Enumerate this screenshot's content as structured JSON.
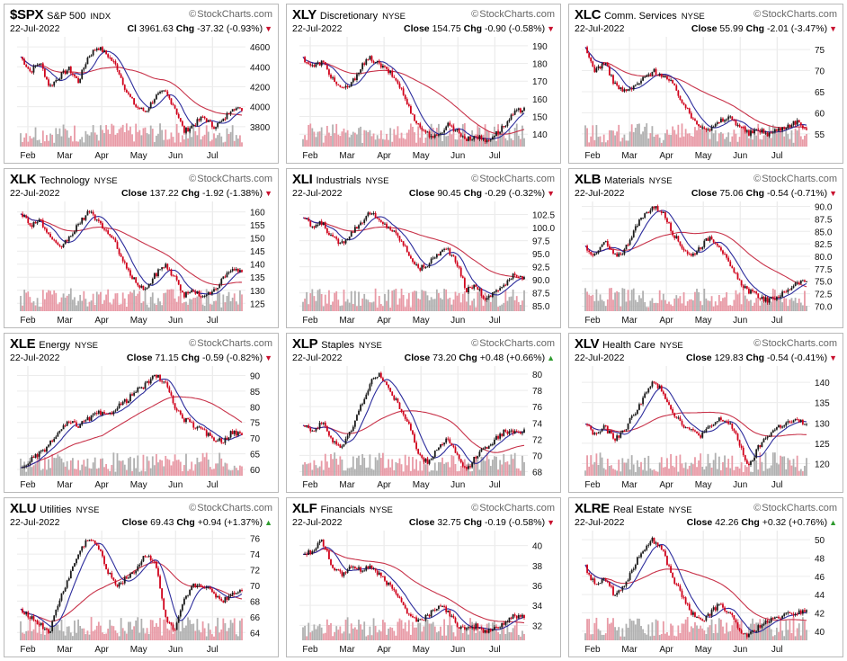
{
  "source": "StockCharts.com",
  "date": "22-Jul-2022",
  "colors": {
    "up": "#1a1a1a",
    "down": "#d0021b",
    "ma_short": "#2c2c9c",
    "ma_long": "#c8334a",
    "vol_up": "#b0b0b0",
    "vol_down": "#e89aa6",
    "trend_down": "#d0021b",
    "trend_up": "#2e9b2e"
  },
  "chart_data": [
    {
      "type": "line",
      "symbol": "$SPX",
      "name": "S&P 500",
      "exchange": "INDX",
      "close_label": "Cl",
      "close": "3961.63",
      "change": "-37.32 (-0.93%)",
      "trend": "down",
      "x": [
        "Feb",
        "Mar",
        "Apr",
        "May",
        "Jun",
        "Jul"
      ],
      "ylim": [
        3600,
        4700
      ],
      "yticks": [
        "4600",
        "4400",
        "4200",
        "4000",
        "3800"
      ],
      "price": [
        4500,
        4350,
        4450,
        4200,
        4300,
        4380,
        4250,
        4500,
        4600,
        4520,
        4400,
        4150,
        4000,
        3950,
        4100,
        4150,
        4000,
        3750,
        3820,
        3900,
        3800,
        3850,
        4000,
        3960
      ]
    },
    {
      "type": "line",
      "symbol": "XLY",
      "name": "Discretionary",
      "exchange": "NYSE",
      "close_label": "Close",
      "close": "154.75",
      "change": "-0.90 (-0.58%)",
      "trend": "down",
      "x": [
        "Feb",
        "Mar",
        "Apr",
        "May",
        "Jun",
        "Jul"
      ],
      "ylim": [
        133,
        195
      ],
      "yticks": [
        "190",
        "180",
        "170",
        "160",
        "150",
        "140"
      ],
      "price": [
        183,
        178,
        181,
        172,
        165,
        168,
        178,
        183,
        179,
        175,
        168,
        155,
        145,
        140,
        138,
        146,
        142,
        137,
        139,
        136,
        140,
        145,
        152,
        155
      ]
    },
    {
      "type": "line",
      "symbol": "XLC",
      "name": "Comm. Services",
      "exchange": "NYSE",
      "close_label": "Close",
      "close": "55.99",
      "change": "-2.01 (-3.47%)",
      "trend": "down",
      "x": [
        "Feb",
        "Mar",
        "Apr",
        "May",
        "Jun",
        "Jul"
      ],
      "ylim": [
        52,
        78
      ],
      "yticks": [
        "75",
        "70",
        "65",
        "60",
        "55"
      ],
      "price": [
        75,
        70,
        72,
        67,
        65,
        66,
        68,
        70,
        69,
        67,
        63,
        59,
        57,
        56,
        58,
        59,
        57,
        55,
        56,
        55,
        56,
        57,
        58,
        56
      ]
    },
    {
      "type": "line",
      "symbol": "XLK",
      "name": "Technology",
      "exchange": "NYSE",
      "close_label": "Close",
      "close": "137.22",
      "change": "-1.92 (-1.38%)",
      "trend": "down",
      "x": [
        "Feb",
        "Mar",
        "Apr",
        "May",
        "Jun",
        "Jul"
      ],
      "ylim": [
        122,
        164
      ],
      "yticks": [
        "160",
        "155",
        "150",
        "145",
        "140",
        "135",
        "130",
        "125"
      ],
      "price": [
        160,
        155,
        157,
        150,
        146,
        150,
        155,
        160,
        157,
        152,
        147,
        138,
        133,
        130,
        136,
        140,
        135,
        128,
        130,
        127,
        130,
        134,
        138,
        137
      ]
    },
    {
      "type": "line",
      "symbol": "XLI",
      "name": "Industrials",
      "exchange": "NYSE",
      "close_label": "Close",
      "close": "90.45",
      "change": "-0.29 (-0.32%)",
      "trend": "down",
      "x": [
        "Feb",
        "Mar",
        "Apr",
        "May",
        "Jun",
        "Jul"
      ],
      "ylim": [
        84,
        105
      ],
      "yticks": [
        "102.5",
        "100.0",
        "97.5",
        "95.0",
        "92.5",
        "90.0",
        "87.5",
        "85.0"
      ],
      "price": [
        102,
        100,
        101,
        98,
        97,
        99,
        101,
        103,
        101,
        100,
        98,
        95,
        92,
        93,
        95,
        96,
        93,
        88,
        89,
        86,
        88,
        89,
        91,
        90.5
      ]
    },
    {
      "type": "line",
      "symbol": "XLB",
      "name": "Materials",
      "exchange": "NYSE",
      "close_label": "Close",
      "close": "75.06",
      "change": "-0.54 (-0.71%)",
      "trend": "down",
      "x": [
        "Feb",
        "Mar",
        "Apr",
        "May",
        "Jun",
        "Jul"
      ],
      "ylim": [
        69,
        91
      ],
      "yticks": [
        "90.0",
        "87.5",
        "85.0",
        "82.5",
        "80.0",
        "77.5",
        "75.0",
        "72.5",
        "70.0"
      ],
      "price": [
        82,
        80,
        83,
        80,
        81,
        85,
        88,
        90,
        89,
        85,
        82,
        80,
        82,
        84,
        82,
        78,
        75,
        73,
        72,
        71,
        72,
        73,
        75,
        75
      ]
    },
    {
      "type": "line",
      "symbol": "XLE",
      "name": "Energy",
      "exchange": "NYSE",
      "close_label": "Close",
      "close": "71.15",
      "change": "-0.59 (-0.82%)",
      "trend": "down",
      "x": [
        "Feb",
        "Mar",
        "Apr",
        "May",
        "Jun",
        "Jul"
      ],
      "ylim": [
        58,
        93
      ],
      "yticks": [
        "90",
        "85",
        "80",
        "75",
        "70",
        "65",
        "60"
      ],
      "price": [
        60,
        63,
        65,
        68,
        72,
        75,
        74,
        76,
        78,
        77,
        80,
        82,
        85,
        87,
        90,
        88,
        80,
        76,
        74,
        72,
        70,
        69,
        72,
        71
      ]
    },
    {
      "type": "line",
      "symbol": "XLP",
      "name": "Staples",
      "exchange": "NYSE",
      "close_label": "Close",
      "close": "73.20",
      "change": "+0.48 (+0.66%)",
      "trend": "up",
      "x": [
        "Feb",
        "Mar",
        "Apr",
        "May",
        "Jun",
        "Jul"
      ],
      "ylim": [
        67.5,
        81
      ],
      "yticks": [
        "80",
        "78",
        "76",
        "74",
        "72",
        "70",
        "68"
      ],
      "price": [
        74,
        73,
        74,
        72,
        71,
        73,
        76,
        79,
        80,
        78,
        76,
        74,
        70,
        69,
        71,
        72,
        70,
        68,
        70,
        71,
        72,
        73,
        72.7,
        73.2
      ]
    },
    {
      "type": "line",
      "symbol": "XLV",
      "name": "Health Care",
      "exchange": "NYSE",
      "close_label": "Close",
      "close": "129.83",
      "change": "-0.54 (-0.41%)",
      "trend": "down",
      "x": [
        "Feb",
        "Mar",
        "Apr",
        "May",
        "Jun",
        "Jul"
      ],
      "ylim": [
        117,
        144
      ],
      "yticks": [
        "140",
        "135",
        "130",
        "125",
        "120"
      ],
      "price": [
        130,
        127,
        129,
        126,
        128,
        132,
        136,
        140,
        138,
        133,
        130,
        128,
        127,
        129,
        131,
        130,
        125,
        119,
        124,
        127,
        129,
        130,
        130.5,
        129.8
      ]
    },
    {
      "type": "line",
      "symbol": "XLU",
      "name": "Utilities",
      "exchange": "NYSE",
      "close_label": "Close",
      "close": "69.43",
      "change": "+0.94 (+1.37%)",
      "trend": "up",
      "x": [
        "Feb",
        "Mar",
        "Apr",
        "May",
        "Jun",
        "Jul"
      ],
      "ylim": [
        63,
        77
      ],
      "yticks": [
        "76",
        "74",
        "72",
        "70",
        "68",
        "66",
        "64"
      ],
      "price": [
        67,
        66,
        65,
        64,
        68,
        71,
        74,
        76,
        75,
        72,
        70,
        71,
        72,
        74,
        73,
        66,
        64,
        68,
        70,
        70,
        69,
        68,
        69,
        69.4
      ]
    },
    {
      "type": "line",
      "symbol": "XLF",
      "name": "Financials",
      "exchange": "NYSE",
      "close_label": "Close",
      "close": "32.75",
      "change": "-0.19 (-0.58%)",
      "trend": "down",
      "x": [
        "Feb",
        "Mar",
        "Apr",
        "May",
        "Jun",
        "Jul"
      ],
      "ylim": [
        30.5,
        41.5
      ],
      "yticks": [
        "40",
        "38",
        "36",
        "34",
        "32"
      ],
      "price": [
        39,
        39.5,
        40.5,
        38,
        37,
        38,
        37.5,
        38,
        37,
        36,
        35,
        33,
        32.5,
        33,
        34,
        33.5,
        32,
        31.5,
        32,
        31.3,
        31.8,
        32.3,
        33,
        32.75
      ]
    },
    {
      "type": "line",
      "symbol": "XLRE",
      "name": "Real Estate",
      "exchange": "NYSE",
      "close_label": "Close",
      "close": "42.26",
      "change": "+0.32 (+0.76%)",
      "trend": "up",
      "x": [
        "Feb",
        "Mar",
        "Apr",
        "May",
        "Jun",
        "Jul"
      ],
      "ylim": [
        39,
        51
      ],
      "yticks": [
        "50",
        "48",
        "46",
        "44",
        "42",
        "40"
      ],
      "price": [
        47,
        45,
        46,
        44,
        45,
        47,
        49,
        50,
        49,
        46,
        44,
        42,
        41,
        42,
        43,
        42,
        40,
        39.5,
        40.5,
        41,
        41.5,
        41.8,
        42,
        42.3
      ]
    }
  ]
}
